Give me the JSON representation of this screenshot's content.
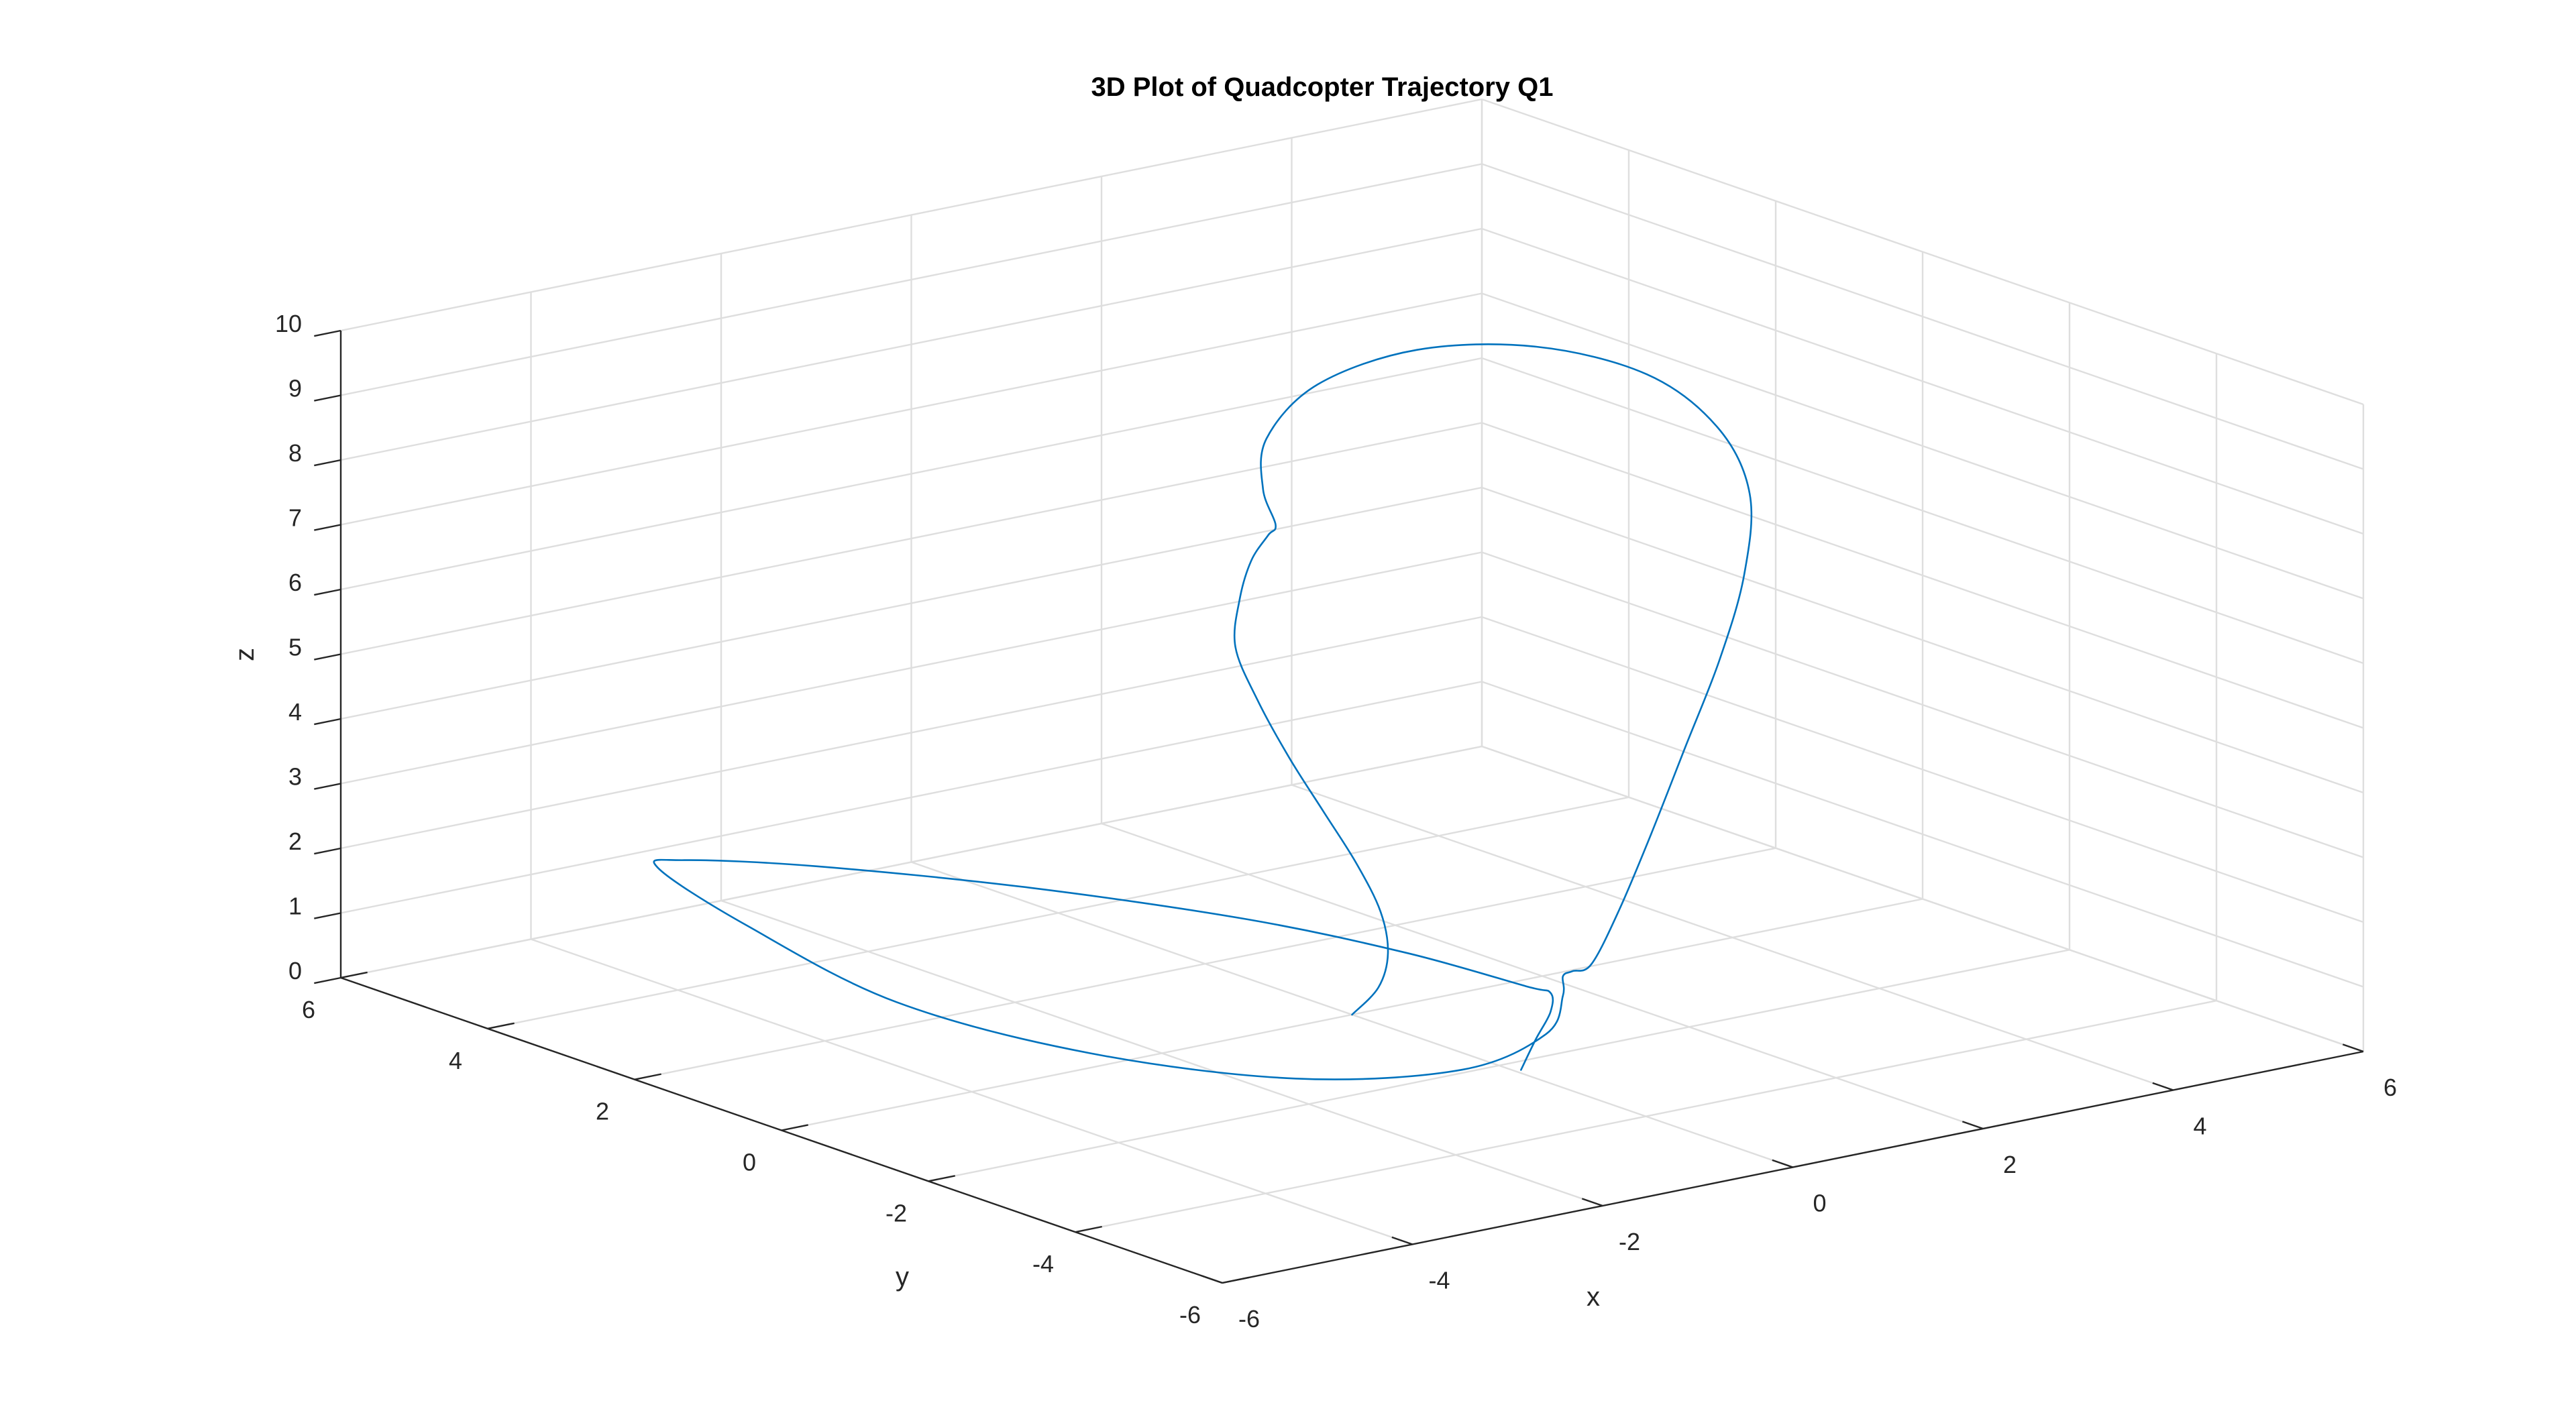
{
  "figure": {
    "title": "3D Plot of Quadcopter Trajectory Q1"
  },
  "colors": {
    "background": "#ffffff",
    "series": "#0072bd",
    "grid": "#dedede",
    "axis": "#262626"
  },
  "chart_data": {
    "type": "line3d",
    "title": "3D Plot of Quadcopter Trajectory Q1",
    "xlabel": "x",
    "ylabel": "y",
    "zlabel": "z",
    "xlim": [
      -6,
      6
    ],
    "ylim": [
      -6,
      6
    ],
    "zlim": [
      0,
      10
    ],
    "xticks": [
      -6,
      -4,
      -2,
      0,
      2,
      4,
      6
    ],
    "yticks": [
      -6,
      -4,
      -2,
      0,
      2,
      4,
      6
    ],
    "zticks": [
      0,
      1,
      2,
      3,
      4,
      5,
      6,
      7,
      8,
      9,
      10
    ],
    "grid": true,
    "box": "back planes",
    "series": [
      {
        "points": [
          [
            0.0,
            0.0,
            0.0
          ],
          [
            0.2,
            -0.1,
            0.4
          ],
          [
            0.3,
            -0.1,
            0.9
          ],
          [
            0.3,
            0.0,
            1.5
          ],
          [
            0.2,
            0.2,
            2.2
          ],
          [
            0.0,
            0.4,
            3.0
          ],
          [
            -0.2,
            0.6,
            3.8
          ],
          [
            -0.3,
            0.9,
            4.6
          ],
          [
            -0.3,
            1.2,
            5.3
          ],
          [
            -0.1,
            1.4,
            5.9
          ],
          [
            0.1,
            1.5,
            6.4
          ],
          [
            0.2,
            1.4,
            6.8
          ],
          [
            0.2,
            1.3,
            7.0
          ],
          [
            0.3,
            1.6,
            7.4
          ],
          [
            0.8,
            2.2,
            7.8
          ],
          [
            1.8,
            2.8,
            8.1
          ],
          [
            3.0,
            3.0,
            8.2
          ],
          [
            4.1,
            2.8,
            8.0
          ],
          [
            4.8,
            2.2,
            7.6
          ],
          [
            5.0,
            1.5,
            7.0
          ],
          [
            4.8,
            0.8,
            6.3
          ],
          [
            4.2,
            0.1,
            5.5
          ],
          [
            3.4,
            -0.6,
            4.7
          ],
          [
            2.5,
            -1.3,
            3.9
          ],
          [
            1.6,
            -2.0,
            3.1
          ],
          [
            0.8,
            -2.6,
            2.4
          ],
          [
            0.2,
            -3.0,
            1.9
          ],
          [
            0.0,
            -3.0,
            1.85
          ],
          [
            -0.1,
            -3.0,
            1.8
          ],
          [
            -0.1,
            -3.0,
            1.5
          ],
          [
            -0.2,
            -2.9,
            0.9
          ],
          [
            -0.7,
            -2.4,
            0.3
          ],
          [
            -1.6,
            -1.3,
            0.0
          ],
          [
            -2.6,
            0.2,
            0.1
          ],
          [
            -3.4,
            1.8,
            0.5
          ],
          [
            -3.8,
            3.3,
            1.2
          ],
          [
            -3.9,
            4.4,
            1.7
          ],
          [
            -3.7,
            4.3,
            1.8
          ],
          [
            -3.0,
            3.4,
            1.85
          ],
          [
            -2.0,
            1.8,
            1.85
          ],
          [
            -1.1,
            0.0,
            1.8
          ],
          [
            -0.5,
            -1.4,
            1.65
          ],
          [
            -0.1,
            -2.5,
            1.45
          ],
          [
            0.0,
            -2.7,
            1.4
          ],
          [
            0.0,
            -2.7,
            1.1
          ],
          [
            0.0,
            -2.5,
            0.6
          ],
          [
            0.0,
            -2.3,
            0.05
          ]
        ]
      }
    ]
  }
}
